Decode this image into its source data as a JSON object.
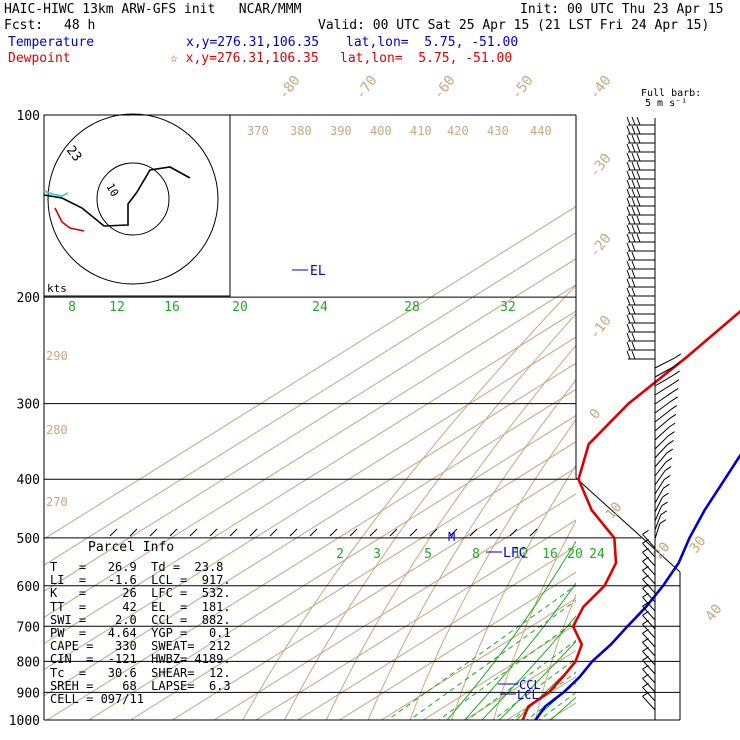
{
  "header": {
    "title": "HAIC-HIWC 13km ARW-GFS init   NCAR/MMM",
    "init": "Init: 00 UTC Thu 23 Apr 15",
    "fcst_label": "Fcst:",
    "fcst_value": "48 h",
    "valid": "Valid: 00 UTC Sat 25 Apr 15 (21 LST Fri 24 Apr 15)",
    "temperature_label": "Temperature",
    "temperature_xy": "x,y=276.31,106.35",
    "temperature_latlon": "lat,lon=  5.75, -51.00",
    "dewpoint_label": "Dewpoint",
    "dewpoint_xy": "☆ x,y=276.31,106.35",
    "dewpoint_latlon": "lat,lon=  5.75, -51.00"
  },
  "barb_key": {
    "line1": "Full barb:",
    "line2": "5 m s⁻¹"
  },
  "hodograph": {
    "ring_label": "23",
    "inner_label": "10",
    "units": "kts"
  },
  "parcel_info": {
    "title": "Parcel Info",
    "rows": [
      "T   =   26.9  Td =  23.8",
      "LI  =   -1.6  LCL =  917.",
      "K   =     26  LFC =  532.",
      "TT  =     42  EL  =  181.",
      "SWI =    2.0  CCL =  882.",
      "PW  =   4.64  YGP =   0.1",
      "CAPE =   330  SWEAT=  212",
      "CIN  =  -121  HWBZ= 4189.",
      "Tc  =   30.6  SHEAR=  12.",
      "SREH =    68  LAPSE=  6.3",
      "CELL = 097/11"
    ]
  },
  "levels": {
    "el": "EL",
    "lfc": "LFC",
    "ccl": "CCL",
    "lcl": "LCL",
    "m": "M"
  },
  "colors": {
    "temperature": "#0000cc",
    "dewpoint": "#dd0000",
    "tan": "#c8a882",
    "green": "#22aa22",
    "cyan": "#44ccdd"
  },
  "chart_data": {
    "type": "line",
    "subtype": "skew-T log-p",
    "pressure_levels": [
      100,
      200,
      300,
      400,
      500,
      600,
      700,
      800,
      900,
      1000
    ],
    "isotherm_labels": [
      -80,
      -70,
      -60,
      -50,
      -40,
      -30,
      -20,
      -10,
      0,
      10,
      20,
      30,
      40
    ],
    "theta_labels": [
      370,
      380,
      390,
      400,
      410,
      420,
      430,
      440,
      290,
      280,
      270
    ],
    "mixing_ratio_labels_top": [
      8,
      12,
      16,
      20,
      24,
      28,
      32
    ],
    "mixing_ratio_labels_bottom": [
      2,
      3,
      5,
      8,
      12,
      16,
      20,
      24
    ],
    "series": [
      {
        "name": "Temperature",
        "points": [
          [
            100,
            -76
          ],
          [
            110,
            -73
          ],
          [
            125,
            -68
          ],
          [
            150,
            -65
          ],
          [
            175,
            -62
          ],
          [
            200,
            -56
          ],
          [
            250,
            -46
          ],
          [
            300,
            -37
          ],
          [
            350,
            -28
          ],
          [
            400,
            -20
          ],
          [
            450,
            -13
          ],
          [
            500,
            -6
          ],
          [
            550,
            1
          ],
          [
            600,
            6
          ],
          [
            650,
            10
          ],
          [
            700,
            13
          ],
          [
            750,
            16
          ],
          [
            800,
            18
          ],
          [
            850,
            21
          ],
          [
            900,
            23
          ],
          [
            950,
            24
          ],
          [
            1000,
            26.9
          ]
        ]
      },
      {
        "name": "Dewpoint",
        "points": [
          [
            100,
            -93
          ],
          [
            120,
            -93
          ],
          [
            150,
            -94
          ],
          [
            175,
            -90
          ],
          [
            200,
            -82
          ],
          [
            250,
            -76
          ],
          [
            300,
            -72
          ],
          [
            350,
            -66
          ],
          [
            400,
            -55
          ],
          [
            450,
            -40
          ],
          [
            500,
            -24
          ],
          [
            550,
            -14
          ],
          [
            600,
            -8
          ],
          [
            650,
            -5
          ],
          [
            700,
            0
          ],
          [
            750,
            9
          ],
          [
            800,
            14
          ],
          [
            850,
            17
          ],
          [
            900,
            19.5
          ],
          [
            950,
            20
          ],
          [
            1000,
            23.8
          ]
        ]
      }
    ]
  }
}
